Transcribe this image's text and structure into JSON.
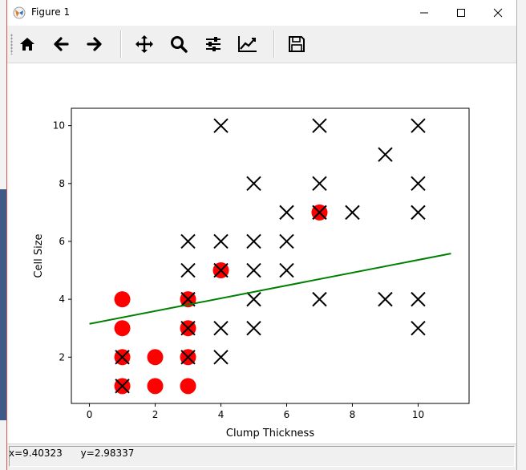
{
  "window": {
    "title": "Figure 1"
  },
  "toolbar": {
    "buttons": [
      {
        "name": "home-icon"
      },
      {
        "name": "back-arrow-icon"
      },
      {
        "name": "forward-arrow-icon"
      },
      {
        "name": "pan-move-icon"
      },
      {
        "name": "zoom-magnifier-icon"
      },
      {
        "name": "subplots-configure-icon"
      },
      {
        "name": "edit-axis-icon"
      },
      {
        "name": "save-icon"
      }
    ]
  },
  "status": {
    "coords": "x=9.40323      y=2.98337"
  },
  "colors": {
    "benign": "#ff0000",
    "malignant": "#000000",
    "line": "#008000"
  },
  "chart_data": {
    "type": "scatter",
    "xlabel": "Clump Thickness",
    "ylabel": "Cell Size",
    "xlim": [
      -0.55,
      11.55
    ],
    "ylim": [
      0.4,
      10.6
    ],
    "xticks": [
      0,
      2,
      4,
      6,
      8,
      10
    ],
    "yticks": [
      2,
      4,
      6,
      8,
      10
    ],
    "grid": false,
    "series": [
      {
        "marker": "o",
        "color": "#ff0000",
        "points": [
          [
            1,
            4
          ],
          [
            1,
            3
          ],
          [
            1,
            2
          ],
          [
            1,
            1
          ],
          [
            2,
            2
          ],
          [
            2,
            1
          ],
          [
            3,
            4
          ],
          [
            3,
            3
          ],
          [
            3,
            2
          ],
          [
            3,
            1
          ],
          [
            4,
            5
          ],
          [
            7,
            7
          ]
        ]
      },
      {
        "marker": "x",
        "color": "#000000",
        "points": [
          [
            1,
            2
          ],
          [
            1,
            1
          ],
          [
            3,
            6
          ],
          [
            3,
            5
          ],
          [
            3,
            4
          ],
          [
            3,
            3
          ],
          [
            3,
            2
          ],
          [
            4,
            10
          ],
          [
            4,
            6
          ],
          [
            4,
            5
          ],
          [
            4,
            3
          ],
          [
            4,
            2
          ],
          [
            5,
            8
          ],
          [
            5,
            6
          ],
          [
            5,
            5
          ],
          [
            5,
            4
          ],
          [
            5,
            3
          ],
          [
            6,
            7
          ],
          [
            6,
            6
          ],
          [
            6,
            5
          ],
          [
            7,
            10
          ],
          [
            7,
            8
          ],
          [
            7,
            7
          ],
          [
            7,
            4
          ],
          [
            8,
            7
          ],
          [
            9,
            9
          ],
          [
            9,
            4
          ],
          [
            10,
            10
          ],
          [
            10,
            8
          ],
          [
            10,
            7
          ],
          [
            10,
            4
          ],
          [
            10,
            3
          ]
        ]
      },
      {
        "marker": "line",
        "color": "#008000",
        "points": [
          [
            0,
            3.15
          ],
          [
            11,
            5.58
          ]
        ]
      }
    ]
  }
}
